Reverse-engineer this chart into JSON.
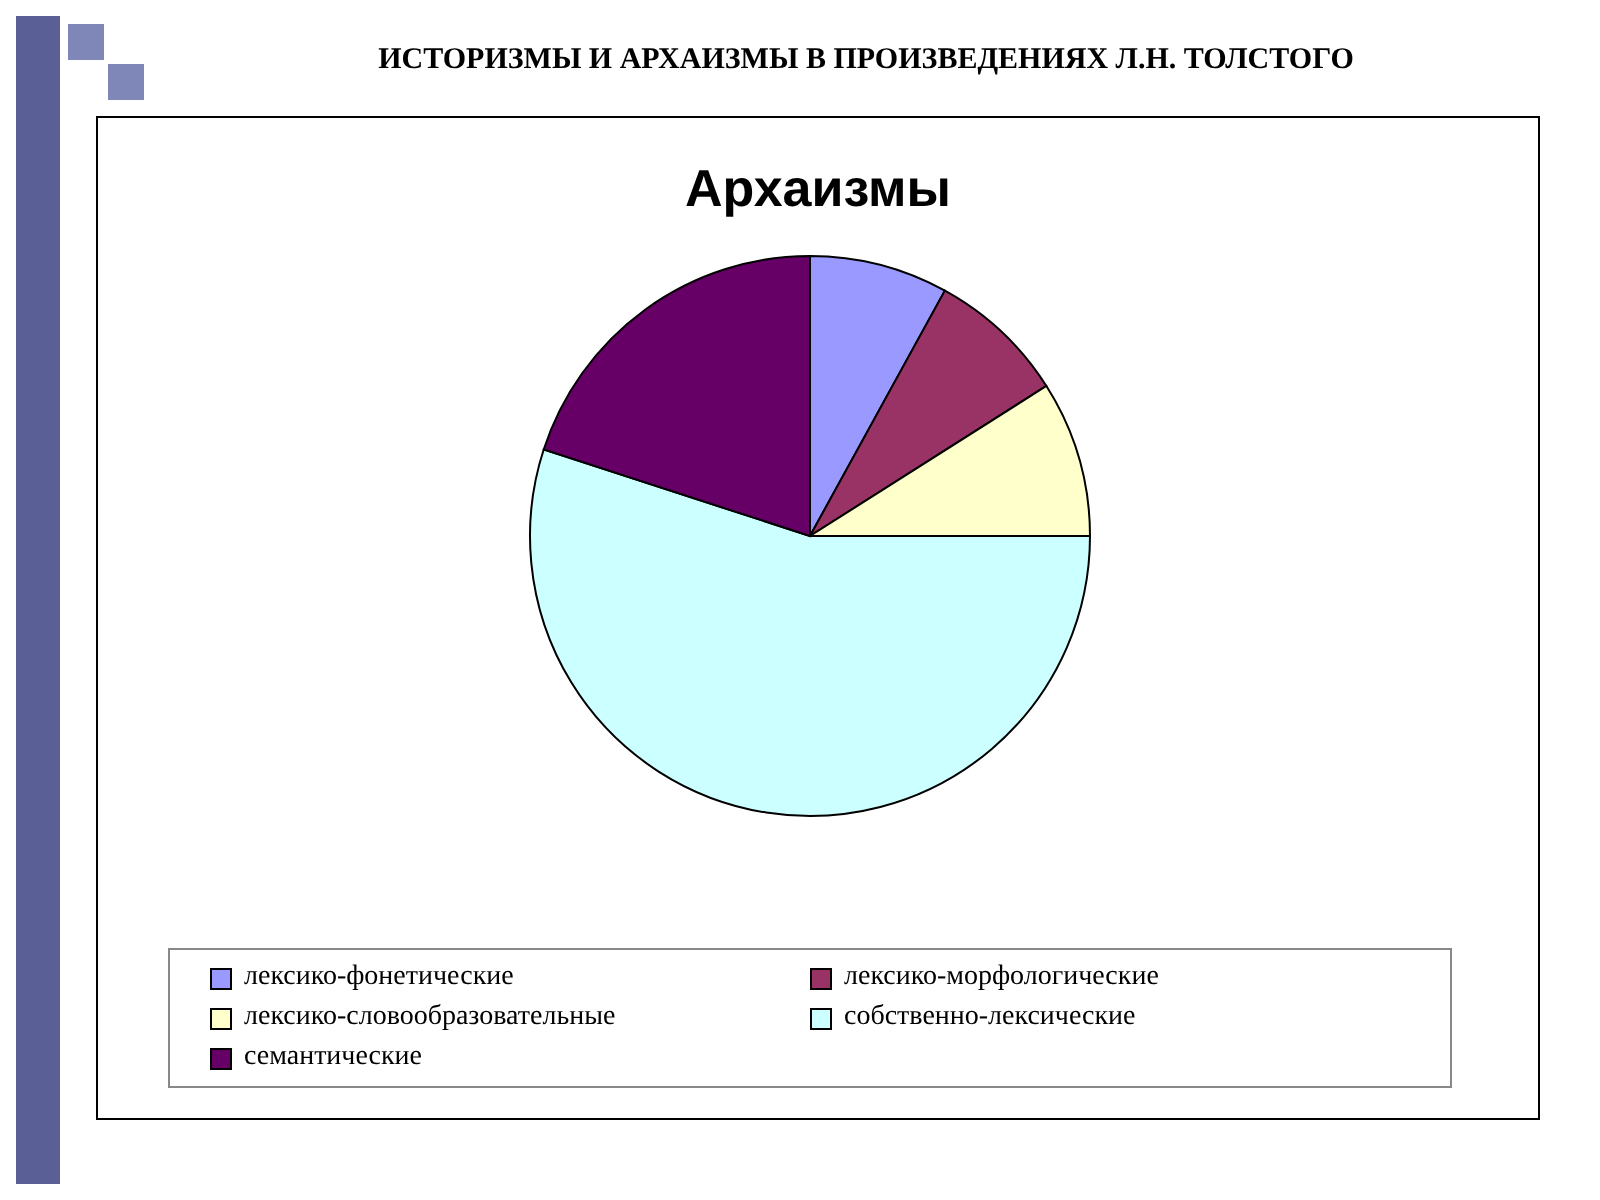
{
  "chart_data": {
    "type": "pie",
    "title": "ИСТОРИЗМЫ И АРХАИЗМЫ В ПРОИЗВЕДЕНИЯХ Л.Н. ТОЛСТОГО",
    "subtitle": "Архаизмы",
    "categories": [
      "лексико-фонетические",
      "лексико-морфологические",
      "лексико-словообразовательные",
      "собственно-лексические",
      "семантические"
    ],
    "values": [
      8,
      8,
      9,
      55,
      20
    ],
    "colors": [
      "#9999ff",
      "#993366",
      "#ffffcc",
      "#ccffff",
      "#660066"
    ],
    "legend": "bottom"
  }
}
